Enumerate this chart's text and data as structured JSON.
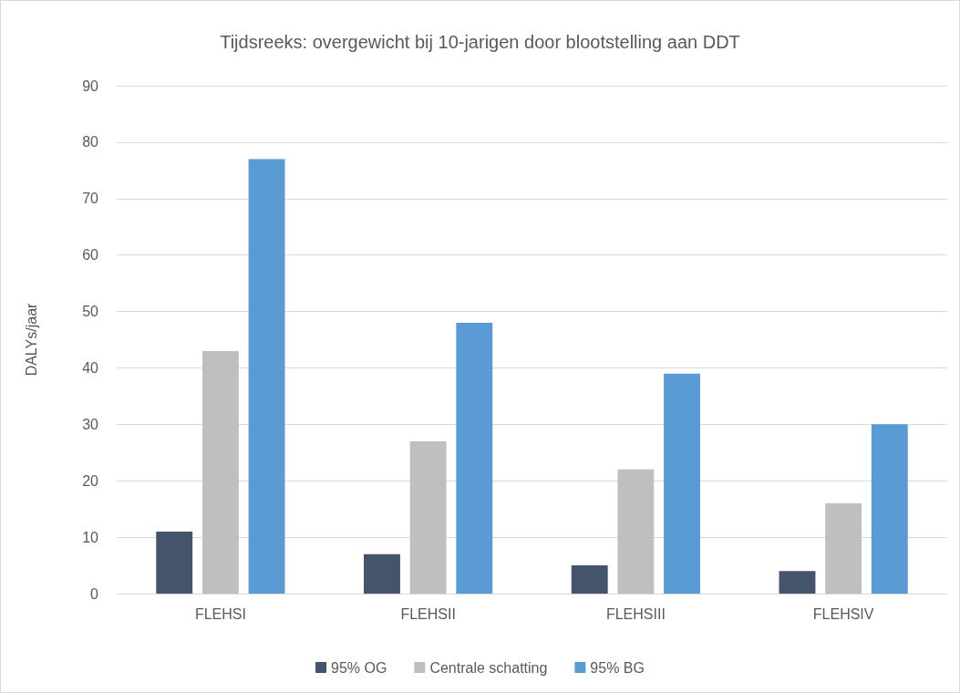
{
  "chart_data": {
    "type": "bar",
    "title": "Tijdsreeks: overgewicht bij 10-jarigen door blootstelling aan DDT",
    "ylabel": "DALYs/jaar",
    "categories": [
      "FLEHSI",
      "FLEHSII",
      "FLEHSIII",
      "FLEHSIV"
    ],
    "series": [
      {
        "name": "95% OG",
        "color": "#44546a",
        "values": [
          11,
          7,
          5,
          4
        ]
      },
      {
        "name": "Centrale schatting",
        "color": "#bfbfbf",
        "values": [
          43,
          27,
          22,
          16
        ]
      },
      {
        "name": "95% BG",
        "color": "#5b9bd5",
        "values": [
          77,
          48,
          39,
          30
        ]
      }
    ],
    "ylim": [
      0,
      90
    ],
    "yticks": [
      0,
      10,
      20,
      30,
      40,
      50,
      60,
      70,
      80,
      90
    ],
    "grid": "y",
    "legend": "bottom"
  }
}
